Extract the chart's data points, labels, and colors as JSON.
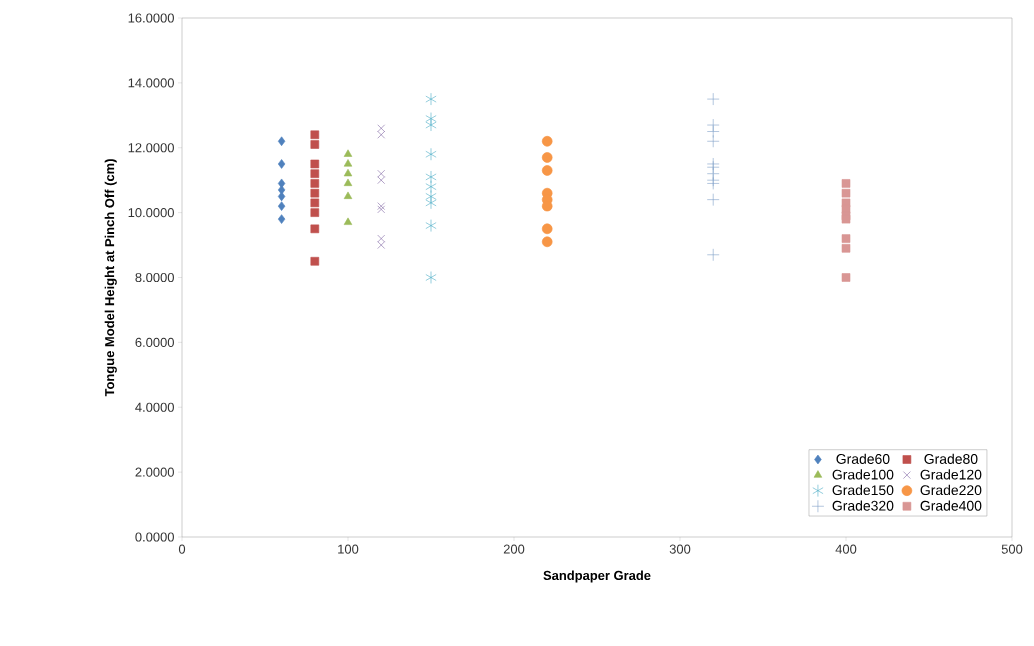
{
  "chart_data": {
    "type": "scatter",
    "xlabel": "Sandpaper Grade",
    "ylabel": "Tongue Model Height at Pinch Off (cm)",
    "xlim": [
      0,
      500
    ],
    "xticks": [
      0,
      100,
      200,
      300,
      400,
      500
    ],
    "ylim": [
      0,
      16
    ],
    "yticks": [
      {
        "value": 0,
        "label": "0.0000"
      },
      {
        "value": 2,
        "label": "2.0000"
      },
      {
        "value": 4,
        "label": "4.0000"
      },
      {
        "value": 6,
        "label": "6.0000"
      },
      {
        "value": 8,
        "label": "8.0000"
      },
      {
        "value": 10,
        "label": "10.0000"
      },
      {
        "value": 12,
        "label": "12.0000"
      },
      {
        "value": 14,
        "label": "14.0000"
      },
      {
        "value": 16,
        "label": "16.0000"
      }
    ],
    "grid": false,
    "legend": "bottom right",
    "series": [
      {
        "name": "Grade60",
        "color": "#4f81bd",
        "marker": "diamond",
        "x": [
          60,
          60,
          60,
          60,
          60,
          60,
          60
        ],
        "values": [
          12.2,
          11.5,
          10.9,
          10.7,
          10.5,
          10.2,
          9.8
        ]
      },
      {
        "name": "Grade80",
        "color": "#c0504d",
        "marker": "square",
        "x": [
          80,
          80,
          80,
          80,
          80,
          80,
          80,
          80,
          80,
          80
        ],
        "values": [
          12.4,
          12.1,
          11.5,
          11.2,
          10.9,
          10.6,
          10.3,
          10.0,
          9.5,
          8.5
        ]
      },
      {
        "name": "Grade100",
        "color": "#9bbb59",
        "marker": "triangle",
        "x": [
          100,
          100,
          100,
          100,
          100,
          100
        ],
        "values": [
          11.8,
          11.5,
          11.2,
          10.9,
          10.5,
          9.7
        ]
      },
      {
        "name": "Grade120",
        "color": "#8064a2",
        "marker": "cross",
        "x": [
          120,
          120,
          120,
          120,
          120,
          120,
          120,
          120
        ],
        "values": [
          12.6,
          12.4,
          11.2,
          11.0,
          10.2,
          10.1,
          9.2,
          9.0
        ]
      },
      {
        "name": "Grade150",
        "color": "#4bacc6",
        "x": [
          150,
          150,
          150,
          150,
          150,
          150,
          150,
          150,
          150,
          150
        ],
        "values": [
          13.5,
          12.9,
          12.7,
          11.8,
          11.1,
          10.8,
          10.5,
          10.3,
          9.6,
          8.0
        ]
      },
      {
        "name": "Grade220",
        "color": "#f79646",
        "marker": "circle",
        "x": [
          220,
          220,
          220,
          220,
          220,
          220,
          220,
          220
        ],
        "values": [
          12.2,
          11.7,
          11.3,
          10.6,
          10.4,
          10.2,
          9.5,
          9.1
        ]
      },
      {
        "name": "Grade320",
        "color": "#7f9fc8",
        "marker": "plus",
        "x": [
          320,
          320,
          320,
          320,
          320,
          320,
          320,
          320,
          320,
          320,
          320
        ],
        "values": [
          13.5,
          12.7,
          12.5,
          12.2,
          11.5,
          11.4,
          11.2,
          11.0,
          10.9,
          10.4,
          8.7
        ]
      },
      {
        "name": "Grade400",
        "color": "#d99694",
        "marker": "square",
        "x": [
          400,
          400,
          400,
          400,
          400,
          400,
          400,
          400,
          400
        ],
        "values": [
          10.9,
          10.6,
          10.3,
          10.1,
          9.9,
          9.8,
          9.2,
          8.9,
          8.0
        ]
      }
    ]
  }
}
